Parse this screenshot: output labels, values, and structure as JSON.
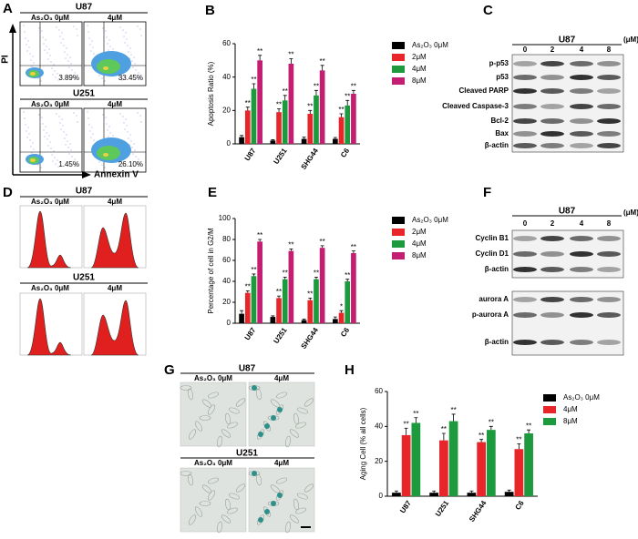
{
  "chart_data": [
    {
      "type": "bar",
      "panel": "B",
      "y_label": "Apoptosis Ratio (%)",
      "categories": [
        "U87",
        "U251",
        "SHG44",
        "C6"
      ],
      "ylim": [
        0,
        60
      ],
      "yticks": [
        0,
        20,
        40,
        60
      ],
      "legend": "right",
      "series": [
        {
          "name": "As₂O₃ 0μM",
          "color": "#000000",
          "values": [
            4,
            2,
            3,
            3
          ],
          "errors": [
            1,
            0.5,
            1,
            0.8
          ]
        },
        {
          "name": "2μM",
          "color": "#e8262a",
          "values": [
            20,
            19,
            18,
            16
          ],
          "errors": [
            2,
            2,
            2,
            2
          ],
          "significance": [
            "**",
            "**",
            "**",
            "**"
          ]
        },
        {
          "name": "4μM",
          "color": "#1d9a3e",
          "values": [
            33,
            26,
            29,
            23
          ],
          "errors": [
            3,
            3,
            3,
            3
          ],
          "significance": [
            "**",
            "**",
            "**",
            "**"
          ]
        },
        {
          "name": "8μM",
          "color": "#c41e72",
          "values": [
            50,
            48,
            44,
            30
          ],
          "errors": [
            3,
            3,
            3,
            2
          ],
          "significance": [
            "**",
            "**",
            "**",
            "**"
          ]
        }
      ]
    },
    {
      "type": "bar",
      "panel": "E",
      "y_label": "Percentage of cell in G2/M",
      "categories": [
        "U87",
        "U251",
        "SHG44",
        "C6"
      ],
      "ylim": [
        0,
        100
      ],
      "yticks": [
        0,
        20,
        40,
        60,
        80,
        100
      ],
      "legend": "right",
      "series": [
        {
          "name": "As₂O₃ 0μM",
          "color": "#000000",
          "values": [
            9,
            6,
            3,
            4
          ],
          "errors": [
            3,
            1,
            1,
            2
          ]
        },
        {
          "name": "2μM",
          "color": "#e8262a",
          "values": [
            29,
            24,
            22,
            10
          ],
          "errors": [
            2,
            2,
            2,
            2
          ],
          "significance": [
            "**",
            "**",
            "**",
            "*"
          ]
        },
        {
          "name": "4μM",
          "color": "#1d9a3e",
          "values": [
            45,
            42,
            42,
            40
          ],
          "errors": [
            2,
            2,
            2,
            2
          ],
          "significance": [
            "**",
            "**",
            "**",
            "**"
          ]
        },
        {
          "name": "8μM",
          "color": "#c41e72",
          "values": [
            78,
            69,
            72,
            67
          ],
          "errors": [
            2,
            2,
            2,
            2
          ],
          "significance": [
            "**",
            "**",
            "**",
            "**"
          ]
        }
      ]
    },
    {
      "type": "bar",
      "panel": "H",
      "y_label": "Aging Cell (% all cells)",
      "categories": [
        "U87",
        "U251",
        "SHG44",
        "C6"
      ],
      "ylim": [
        0,
        60
      ],
      "yticks": [
        0,
        20,
        40,
        60
      ],
      "legend": "right",
      "series": [
        {
          "name": "As₂O₃ 0μM",
          "color": "#000000",
          "values": [
            2,
            2,
            2,
            2.5
          ],
          "errors": [
            1,
            1,
            1,
            1
          ]
        },
        {
          "name": "4μM",
          "color": "#e8262a",
          "values": [
            35,
            32,
            31,
            27
          ],
          "errors": [
            4,
            4,
            1.5,
            3
          ],
          "significance": [
            "**",
            "**",
            "**",
            "**"
          ]
        },
        {
          "name": "8μM",
          "color": "#1d9a3e",
          "values": [
            42,
            43,
            38,
            36
          ],
          "errors": [
            3,
            4,
            2,
            2
          ],
          "significance": [
            "**",
            "**",
            "**",
            "**"
          ]
        }
      ]
    }
  ],
  "panels": {
    "A": {
      "label": "A",
      "cell_lines": [
        "U87",
        "U251"
      ],
      "conditions": [
        "As₂O₃ 0μM",
        "4μM"
      ],
      "percentages": [
        "3.89%",
        "33.45%",
        "1.45%",
        "26.10%"
      ],
      "y_axis": "PI",
      "x_axis": "Annexin V"
    },
    "C": {
      "label": "C",
      "cell_line": "U87",
      "doses": [
        0,
        2,
        4,
        8
      ],
      "unit": "(μM)",
      "rows": [
        "p-p53",
        "p53",
        "Cleaved PARP",
        "Cleaved Caspase-3",
        "Bcl-2",
        "Bax",
        "β-actin"
      ]
    },
    "D": {
      "label": "D",
      "cell_lines": [
        "U87",
        "U251"
      ],
      "conditions": [
        "As₂O₃ 0μM",
        "4μM"
      ]
    },
    "F": {
      "label": "F",
      "cell_line": "U87",
      "doses": [
        0,
        2,
        4,
        8
      ],
      "unit": "(μM)",
      "blot1_rows": [
        "Cyclin B1",
        "Cyclin D1",
        "β-actin"
      ],
      "blot2_rows": [
        "aurora A",
        "p-aurora A",
        "β-actin"
      ]
    },
    "G": {
      "label": "G",
      "cell_lines": [
        "U87",
        "U251"
      ],
      "conditions": [
        "As₂O₃ 0μM",
        "4μM"
      ]
    }
  }
}
